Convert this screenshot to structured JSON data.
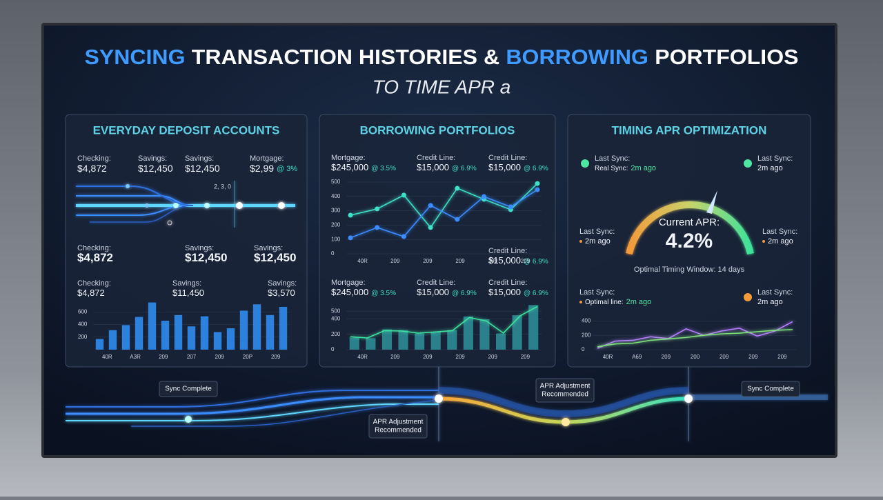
{
  "header": {
    "title": [
      "SYNCING",
      "TRANSACTION HISTORIES &",
      "BORROWING",
      "PORTFOLIOS"
    ],
    "subtitle": "TO TIME APR a"
  },
  "deposit": {
    "title": "EVERYDAY DEPOSIT ACCOUNTS",
    "top": [
      {
        "label": "Checking:",
        "value": "$4,872"
      },
      {
        "label": "Savings:",
        "value": "$12,450"
      },
      {
        "label": "Savings:",
        "value": "$12,450"
      },
      {
        "label": "Mortgage:",
        "value": "$2,99",
        "rate": "@ 3%"
      }
    ],
    "flow_labels": [
      "2, 3, 0"
    ],
    "middle": [
      {
        "label": "Checking:",
        "value": "$4,872"
      },
      {
        "label": "Savings:",
        "value": "$12,450"
      },
      {
        "label": "Savings:",
        "value": "$12,450"
      }
    ],
    "bottom": [
      {
        "label": "Checking:",
        "value": "$4,872"
      },
      {
        "label": "Savings:",
        "value": "$11,450"
      },
      {
        "label": "Savings:",
        "value": "$3,570"
      }
    ],
    "chart": {
      "type": "bar",
      "color": "#2f8cf0",
      "ylim": [
        0,
        800
      ],
      "yticks": [
        200,
        400,
        600
      ],
      "x_labels": [
        "40R",
        "A3R",
        "209",
        "207",
        "209",
        "20P",
        "209"
      ],
      "values": [
        170,
        310,
        390,
        520,
        750,
        460,
        550,
        370,
        530,
        280,
        340,
        620,
        720,
        550,
        680
      ]
    }
  },
  "borrowing": {
    "title": "BORROWING PORTFOLIOS",
    "top": [
      {
        "label": "Mortgage:",
        "value": "$245,000",
        "rate": "@ 3.5%"
      },
      {
        "label": "Credit Line:",
        "value": "$15,000",
        "rate": "@ 6.9%"
      },
      {
        "label": "Credit Line:",
        "value": "$15,000",
        "rate": "@ 6.9%"
      }
    ],
    "line_chart": {
      "type": "line",
      "ylim": [
        0,
        500
      ],
      "yticks": [
        0,
        100,
        200,
        300,
        400,
        500
      ],
      "x_labels": [
        "40R",
        "209",
        "209",
        "209",
        "209",
        "209"
      ],
      "series": [
        {
          "color": "#3fe0c8",
          "values": [
            269,
            313,
            409,
            183,
            457,
            380,
            308,
            490
          ]
        },
        {
          "color": "#3a8cff",
          "values": [
            111,
            183,
            120,
            337,
            240,
            399,
            327,
            447
          ]
        }
      ]
    },
    "note": {
      "label": "Credit Line:",
      "value": "$15,000",
      "rate": "@ 6.9%"
    },
    "bottom": [
      {
        "label": "Mortgage:",
        "value": "$245,000",
        "rate": "@ 3.5%"
      },
      {
        "label": "Credit Line:",
        "value": "$15,000",
        "rate": "@ 6.9%"
      },
      {
        "label": "Credit Line:",
        "value": "$15,000",
        "rate": "@ 6.9%"
      }
    ],
    "bar_chart": {
      "type": "bar",
      "color": "#2c8c96",
      "ylim": [
        0,
        600
      ],
      "yticks": [
        0,
        200,
        400,
        500
      ],
      "x_labels": [
        "40R",
        "209",
        "209",
        "209",
        "209",
        "209"
      ],
      "values": [
        158,
        149,
        263,
        254,
        210,
        228,
        254,
        430,
        395,
        210,
        447,
        579
      ],
      "line_color": "#3fe0a0",
      "line_values": [
        168,
        152,
        247,
        242,
        215,
        230,
        247,
        418,
        372,
        215,
        442,
        560
      ]
    }
  },
  "timing": {
    "title": "TIMING APR OPTIMIZATION",
    "syncs": [
      {
        "label": "Last Sync:",
        "detail": "Real Sync:",
        "time": "2m ago"
      },
      {
        "label": "Last Sync:",
        "time": "2m ago"
      },
      {
        "label": "Last Sync:",
        "time": "2m ago"
      },
      {
        "label": "Last Sync:",
        "time": "2m ago"
      }
    ],
    "gauge": {
      "label": "Current APR:",
      "value": "4.2%",
      "caption": "Optimal Timing Window: 14 days"
    },
    "lower_syncs": [
      {
        "label": "Last Sync:",
        "detail": "Optimal line:",
        "time": "2m ago"
      },
      {
        "label": "Last Sync:",
        "time": "2m ago"
      }
    ],
    "chart": {
      "type": "line",
      "ylim": [
        0,
        500
      ],
      "yticks": [
        0,
        200,
        400
      ],
      "x_labels": [
        "40R",
        "A69",
        "209",
        "200",
        "209",
        "209",
        "209"
      ],
      "series": [
        {
          "color": "#b57cff",
          "values": [
            18,
            120,
            130,
            180,
            155,
            290,
            200,
            260,
            300,
            190,
            260,
            390
          ]
        },
        {
          "color": "#7fe07a",
          "values": [
            40,
            80,
            90,
            130,
            150,
            170,
            200,
            220,
            230,
            250,
            270,
            280
          ]
        }
      ]
    }
  },
  "timeline": {
    "events": [
      {
        "lines": [
          "Sync Complete"
        ]
      },
      {
        "lines": [
          "APR Adjustment",
          "Recommended"
        ]
      },
      {
        "lines": [
          "APR Adjustment",
          "Recommended"
        ]
      },
      {
        "lines": [
          "Sync Complete"
        ]
      }
    ]
  }
}
